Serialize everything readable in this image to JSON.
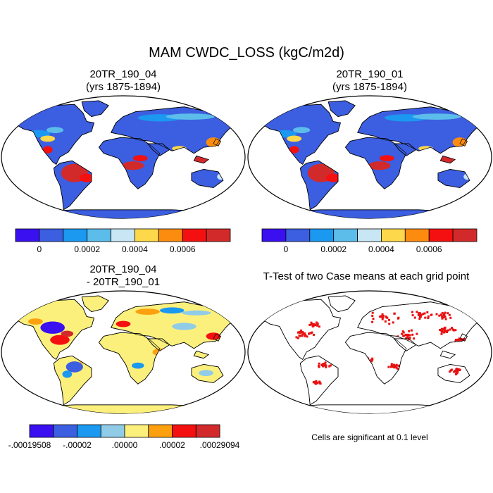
{
  "title": "MAM CWDC_LOSS (kgC/m2d)",
  "panels": [
    {
      "title_line1": "20TR_190_04",
      "title_line2": "(yrs 1875-1894)"
    },
    {
      "title_line1": "20TR_190_01",
      "title_line2": "(yrs 1875-1894)"
    },
    {
      "title_line1": "20TR_190_04",
      "title_line2": "- 20TR_190_01"
    },
    {
      "title_line1": "T-Test of two Case means at each grid point",
      "title_line2": ""
    }
  ],
  "colorbar_abs": {
    "colors": [
      "#3a10f0",
      "#3c5ee0",
      "#1b98f0",
      "#5cbcea",
      "#c8e6f4",
      "#fcd84a",
      "#fc8c10",
      "#f41010",
      "#d22a2a"
    ],
    "tick_labels": [
      "0",
      "0.0002",
      "0.0004",
      "0.0006"
    ]
  },
  "colorbar_diff": {
    "colors": [
      "#3a10f0",
      "#3c5ee0",
      "#1b98f0",
      "#90cce8",
      "#fcf07c",
      "#fca010",
      "#f41010",
      "#d22a2a"
    ],
    "tick_labels": [
      "-.00019508",
      "-.00002",
      ".00000",
      ".00002",
      ".00029094"
    ]
  },
  "significance_note": "Cells are significant at 0.1 level",
  "colors": {
    "ocean": "#ffffff",
    "land_base": "#3c5ee0",
    "diff_base": "#fcf07c",
    "signif": "#e81010"
  }
}
